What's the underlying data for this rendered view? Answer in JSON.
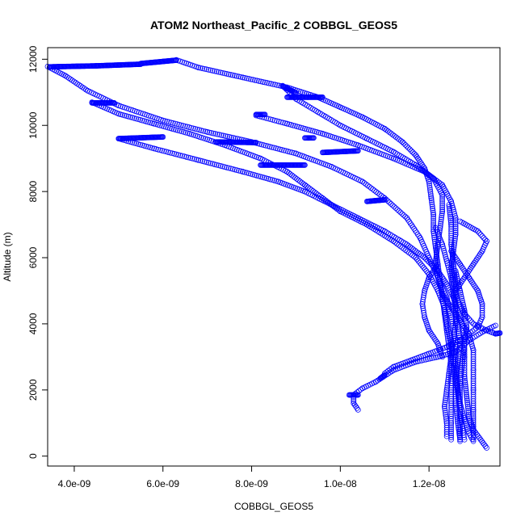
{
  "chart_data": {
    "type": "scatter",
    "title": "ATOM2 Northeast_Pacific_2 COBBGL_GEOS5",
    "xlabel": "COBBGL_GEOS5",
    "ylabel": "Altitude (m)",
    "xlim": [
      3.4e-09,
      1.36e-08
    ],
    "ylim": [
      -300,
      12350
    ],
    "x_ticks": [
      {
        "value": 4e-09,
        "label": "4.0e-09"
      },
      {
        "value": 6e-09,
        "label": "6.0e-09"
      },
      {
        "value": 8e-09,
        "label": "8.0e-09"
      },
      {
        "value": 1e-08,
        "label": "1.0e-08"
      },
      {
        "value": 1.2e-08,
        "label": "1.2e-08"
      }
    ],
    "y_ticks": [
      {
        "value": 0,
        "label": "0"
      },
      {
        "value": 2000,
        "label": "2000"
      },
      {
        "value": 4000,
        "label": "4000"
      },
      {
        "value": 6000,
        "label": "6000"
      },
      {
        "value": 8000,
        "label": "8000"
      },
      {
        "value": 10000,
        "label": "10000"
      },
      {
        "value": 12000,
        "label": "12000"
      }
    ],
    "marker": "open-circle",
    "point_color": "#0000ff",
    "grid": false,
    "legend": "none",
    "series": [
      {
        "points": [
          [
            6.3e-09,
            11980
          ],
          [
            6.8e-09,
            11750
          ],
          [
            7.8e-09,
            11450
          ],
          [
            8.8e-09,
            11150
          ],
          [
            9.5e-09,
            10850
          ],
          [
            1e-08,
            10550
          ],
          [
            1.05e-08,
            10250
          ],
          [
            1.1e-08,
            9900
          ],
          [
            1.14e-08,
            9500
          ],
          [
            1.17e-08,
            9100
          ],
          [
            1.19e-08,
            8700
          ],
          [
            1.2e-08,
            8300
          ],
          [
            1.205e-08,
            7800
          ],
          [
            1.21e-08,
            7300
          ],
          [
            1.21e-08,
            6800
          ],
          [
            1.215e-08,
            6300
          ],
          [
            1.22e-08,
            5800
          ],
          [
            1.225e-08,
            5300
          ],
          [
            1.23e-08,
            4800
          ],
          [
            1.235e-08,
            4300
          ],
          [
            1.24e-08,
            3800
          ],
          [
            1.245e-08,
            3300
          ],
          [
            1.25e-08,
            2800
          ],
          [
            1.25e-08,
            2200
          ],
          [
            1.25e-08,
            1600
          ],
          [
            1.25e-08,
            1000
          ],
          [
            1.25e-08,
            500
          ]
        ]
      },
      {
        "points": [
          [
            3.4e-09,
            11780
          ],
          [
            3.8e-09,
            11500
          ],
          [
            4.3e-09,
            11050
          ],
          [
            5e-09,
            10600
          ],
          [
            6e-09,
            10150
          ],
          [
            7e-09,
            9800
          ],
          [
            8e-09,
            9500
          ],
          [
            9e-09,
            9150
          ],
          [
            9.8e-09,
            8750
          ],
          [
            1.05e-08,
            8300
          ],
          [
            1.1e-08,
            7800
          ],
          [
            1.15e-08,
            7200
          ],
          [
            1.18e-08,
            6600
          ],
          [
            1.2e-08,
            6000
          ],
          [
            1.22e-08,
            5400
          ],
          [
            1.24e-08,
            4800
          ],
          [
            1.25e-08,
            4200
          ],
          [
            1.26e-08,
            3500
          ],
          [
            1.26e-08,
            2800
          ],
          [
            1.265e-08,
            2100
          ],
          [
            1.27e-08,
            1400
          ],
          [
            1.27e-08,
            800
          ],
          [
            1.27e-08,
            450
          ]
        ]
      },
      {
        "points": [
          [
            4.4e-09,
            10700
          ],
          [
            5e-09,
            10350
          ],
          [
            5.8e-09,
            10050
          ],
          [
            6.6e-09,
            9750
          ],
          [
            7.4e-09,
            9400
          ],
          [
            8.2e-09,
            9000
          ],
          [
            8.8e-09,
            8600
          ],
          [
            9.2e-09,
            8200
          ],
          [
            9.6e-09,
            7800
          ],
          [
            1e-08,
            7400
          ],
          [
            1.06e-08,
            7000
          ],
          [
            1.12e-08,
            6500
          ],
          [
            1.17e-08,
            6000
          ],
          [
            1.2e-08,
            5500
          ],
          [
            1.22e-08,
            5000
          ],
          [
            1.235e-08,
            4500
          ],
          [
            1.24e-08,
            4000
          ],
          [
            1.25e-08,
            3400
          ],
          [
            1.255e-08,
            2800
          ],
          [
            1.26e-08,
            2200
          ],
          [
            1.26e-08,
            1600
          ],
          [
            1.265e-08,
            1000
          ],
          [
            1.27e-08,
            500
          ]
        ]
      },
      {
        "points": [
          [
            5e-09,
            9600
          ],
          [
            5.8e-09,
            9300
          ],
          [
            6.8e-09,
            8950
          ],
          [
            7.8e-09,
            8600
          ],
          [
            8.6e-09,
            8300
          ],
          [
            9.2e-09,
            8000
          ],
          [
            9.8e-09,
            7600
          ],
          [
            1.04e-08,
            7200
          ],
          [
            1.1e-08,
            6800
          ],
          [
            1.15e-08,
            6400
          ],
          [
            1.19e-08,
            6000
          ],
          [
            1.22e-08,
            5600
          ],
          [
            1.24e-08,
            5200
          ],
          [
            1.255e-08,
            4800
          ],
          [
            1.265e-08,
            4400
          ],
          [
            1.275e-08,
            4000
          ],
          [
            1.28e-08,
            3600
          ],
          [
            1.28e-08,
            3000
          ],
          [
            1.28e-08,
            2400
          ],
          [
            1.285e-08,
            1800
          ],
          [
            1.29e-08,
            1200
          ],
          [
            1.3e-08,
            800
          ],
          [
            1.33e-08,
            250
          ]
        ]
      },
      {
        "points": [
          [
            8.7e-09,
            11200
          ],
          [
            9e-09,
            10800
          ],
          [
            9.5e-09,
            10400
          ],
          [
            1e-08,
            10000
          ],
          [
            1.06e-08,
            9600
          ],
          [
            1.12e-08,
            9200
          ],
          [
            1.17e-08,
            8800
          ],
          [
            1.21e-08,
            8400
          ],
          [
            1.23e-08,
            7900
          ],
          [
            1.23e-08,
            7400
          ],
          [
            1.225e-08,
            6900
          ],
          [
            1.22e-08,
            6400
          ],
          [
            1.215e-08,
            5900
          ],
          [
            1.22e-08,
            5400
          ],
          [
            1.23e-08,
            4900
          ],
          [
            1.25e-08,
            4500
          ],
          [
            1.27e-08,
            4100
          ],
          [
            1.29e-08,
            3700
          ],
          [
            1.3e-08,
            3200
          ],
          [
            1.3e-08,
            2600
          ],
          [
            1.3e-08,
            2000
          ],
          [
            1.3e-08,
            1400
          ],
          [
            1.3e-08,
            900
          ],
          [
            1.3e-08,
            500
          ]
        ]
      },
      {
        "points": [
          [
            8.1e-09,
            10300
          ],
          [
            8.8e-09,
            10050
          ],
          [
            9.6e-09,
            9750
          ],
          [
            1.04e-08,
            9400
          ],
          [
            1.12e-08,
            9000
          ],
          [
            1.19e-08,
            8600
          ],
          [
            1.23e-08,
            8200
          ],
          [
            1.25e-08,
            7700
          ],
          [
            1.26e-08,
            7200
          ],
          [
            1.26e-08,
            6700
          ],
          [
            1.255e-08,
            6200
          ],
          [
            1.25e-08,
            5700
          ],
          [
            1.255e-08,
            5200
          ],
          [
            1.265e-08,
            4700
          ],
          [
            1.28e-08,
            4300
          ],
          [
            1.3e-08,
            4000
          ],
          [
            1.33e-08,
            3800
          ],
          [
            1.35e-08,
            3700
          ]
        ]
      },
      {
        "points": [
          [
            1.04e-08,
            1400
          ],
          [
            1.03e-08,
            1600
          ],
          [
            1.03e-08,
            1850
          ],
          [
            1.05e-08,
            2050
          ],
          [
            1.08e-08,
            2250
          ],
          [
            1.12e-08,
            2600
          ],
          [
            1.17e-08,
            2850
          ],
          [
            1.22e-08,
            3000
          ],
          [
            1.26e-08,
            3150
          ],
          [
            1.29e-08,
            3500
          ],
          [
            1.32e-08,
            3750
          ],
          [
            1.35e-08,
            3950
          ]
        ]
      },
      {
        "points": [
          [
            1.1e-08,
            2500
          ],
          [
            1.12e-08,
            2700
          ],
          [
            1.16e-08,
            2900
          ],
          [
            1.2e-08,
            3100
          ],
          [
            1.24e-08,
            3300
          ],
          [
            1.27e-08,
            3500
          ],
          [
            1.29e-08,
            3700
          ],
          [
            1.31e-08,
            3900
          ],
          [
            1.32e-08,
            4200
          ],
          [
            1.32e-08,
            4600
          ],
          [
            1.31e-08,
            5000
          ],
          [
            1.29e-08,
            5400
          ],
          [
            1.27e-08,
            5800
          ],
          [
            1.25e-08,
            6200
          ]
        ]
      },
      {
        "points": [
          [
            1.24e-08,
            600
          ],
          [
            1.24e-08,
            1000
          ],
          [
            1.235e-08,
            1500
          ],
          [
            1.24e-08,
            2000
          ],
          [
            1.245e-08,
            2500
          ],
          [
            1.25e-08,
            3000
          ],
          [
            1.255e-08,
            3500
          ],
          [
            1.26e-08,
            4000
          ],
          [
            1.26e-08,
            4600
          ],
          [
            1.26e-08,
            5200
          ],
          [
            1.255e-08,
            5800
          ],
          [
            1.25e-08,
            6400
          ],
          [
            1.25e-08,
            7000
          ],
          [
            1.245e-08,
            7600
          ]
        ]
      },
      {
        "points": [
          [
            1.28e-08,
            500
          ],
          [
            1.275e-08,
            900
          ],
          [
            1.27e-08,
            1400
          ],
          [
            1.265e-08,
            1900
          ],
          [
            1.26e-08,
            2400
          ],
          [
            1.265e-08,
            2900
          ],
          [
            1.27e-08,
            3400
          ],
          [
            1.265e-08,
            3900
          ],
          [
            1.26e-08,
            4400
          ],
          [
            1.255e-08,
            4900
          ],
          [
            1.25e-08,
            5400
          ],
          [
            1.24e-08,
            5900
          ],
          [
            1.23e-08,
            6400
          ],
          [
            1.215e-08,
            6900
          ]
        ]
      },
      {
        "points": [
          [
            1.3e-08,
            450
          ],
          [
            1.29e-08,
            700
          ],
          [
            1.28e-08,
            1100
          ],
          [
            1.27e-08,
            1600
          ],
          [
            1.27e-08,
            2200
          ],
          [
            1.275e-08,
            2800
          ],
          [
            1.28e-08,
            3400
          ],
          [
            1.285e-08,
            3900
          ],
          [
            1.28e-08,
            4400
          ],
          [
            1.27e-08,
            5000
          ],
          [
            1.26e-08,
            5600
          ]
        ]
      },
      {
        "points": [
          [
            1.26e-08,
            5000
          ],
          [
            1.28e-08,
            5400
          ],
          [
            1.3e-08,
            5800
          ],
          [
            1.32e-08,
            6200
          ],
          [
            1.33e-08,
            6500
          ],
          [
            1.31e-08,
            6800
          ],
          [
            1.27e-08,
            7100
          ]
        ]
      },
      {
        "points": [
          [
            1.22e-08,
            5800
          ],
          [
            1.2e-08,
            5400
          ],
          [
            1.19e-08,
            5000
          ],
          [
            1.185e-08,
            4600
          ],
          [
            1.19e-08,
            4200
          ],
          [
            1.2e-08,
            3800
          ],
          [
            1.22e-08,
            3400
          ],
          [
            1.23e-08,
            3000
          ]
        ]
      }
    ],
    "dense_segments": [
      {
        "x_start": 3.45e-09,
        "x_end": 4.5e-09,
        "y_start": 11770,
        "y_end": 11800
      },
      {
        "x_start": 4.5e-09,
        "x_end": 5.5e-09,
        "y_start": 11800,
        "y_end": 11850
      },
      {
        "x_start": 5.5e-09,
        "x_end": 6.3e-09,
        "y_start": 11870,
        "y_end": 11970
      },
      {
        "x_start": 4.4e-09,
        "x_end": 4.9e-09,
        "y_start": 10680,
        "y_end": 10680
      },
      {
        "x_start": 5e-09,
        "x_end": 6e-09,
        "y_start": 9600,
        "y_end": 9650
      },
      {
        "x_start": 7.2e-09,
        "x_end": 8.1e-09,
        "y_start": 9500,
        "y_end": 9480
      },
      {
        "x_start": 8.2e-09,
        "x_end": 9.2e-09,
        "y_start": 8800,
        "y_end": 8800
      },
      {
        "x_start": 8.8e-09,
        "x_end": 9.6e-09,
        "y_start": 10850,
        "y_end": 10850
      },
      {
        "x_start": 8.7e-09,
        "x_end": 9e-09,
        "y_start": 11180,
        "y_end": 10980
      },
      {
        "x_start": 9.6e-09,
        "x_end": 1.04e-08,
        "y_start": 9180,
        "y_end": 9230
      },
      {
        "x_start": 9.2e-09,
        "x_end": 9.4e-09,
        "y_start": 9620,
        "y_end": 9620
      },
      {
        "x_start": 8.1e-09,
        "x_end": 8.3e-09,
        "y_start": 10330,
        "y_end": 10330
      },
      {
        "x_start": 1.06e-08,
        "x_end": 1.1e-08,
        "y_start": 7700,
        "y_end": 7750
      },
      {
        "x_start": 1.02e-08,
        "x_end": 1.04e-08,
        "y_start": 1850,
        "y_end": 1850
      },
      {
        "x_start": 1.09e-08,
        "x_end": 1.1e-08,
        "y_start": 2350,
        "y_end": 2450
      },
      {
        "x_start": 1.35e-08,
        "x_end": 1.36e-08,
        "y_start": 3700,
        "y_end": 3720
      }
    ]
  }
}
